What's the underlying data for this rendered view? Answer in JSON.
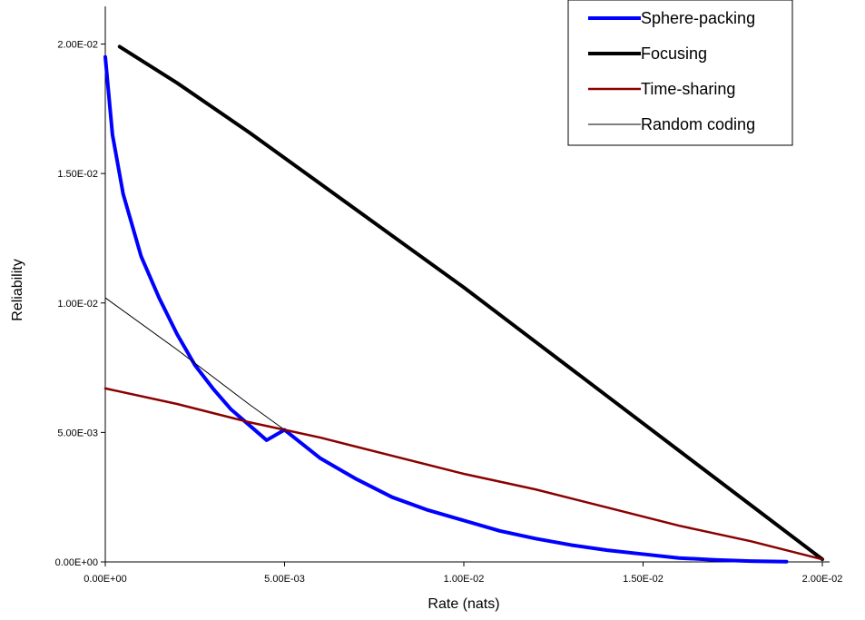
{
  "chart_data": {
    "type": "line",
    "title": "",
    "xlabel": "Rate (nats)",
    "ylabel": "Reliability",
    "xlim": [
      0,
      0.02
    ],
    "ylim": [
      0,
      0.021
    ],
    "x_ticks": [
      0,
      0.005,
      0.01,
      0.015,
      0.02
    ],
    "x_tick_labels": [
      "0.00E+00",
      "5.00E-03",
      "1.00E-02",
      "1.50E-02",
      "2.00E-02"
    ],
    "y_ticks": [
      0,
      0.005,
      0.01,
      0.015,
      0.02
    ],
    "y_tick_labels": [
      "0.00E+00",
      "5.00E-03",
      "1.00E-02",
      "1.50E-02",
      "2.00E-02"
    ],
    "grid": false,
    "legend_position": "top-right",
    "series": [
      {
        "name": "Sphere-packing",
        "color": "#0000ff",
        "width": 4,
        "x": [
          0,
          0.0002,
          0.0005,
          0.001,
          0.0015,
          0.002,
          0.0025,
          0.003,
          0.0035,
          0.004,
          0.0045,
          0.005,
          0.006,
          0.007,
          0.008,
          0.009,
          0.01,
          0.011,
          0.012,
          0.013,
          0.014,
          0.015,
          0.016,
          0.017,
          0.018,
          0.019
        ],
        "y": [
          0.0195,
          0.0165,
          0.0142,
          0.0118,
          0.0102,
          0.0088,
          0.0076,
          0.0067,
          0.0059,
          0.0053,
          0.0047,
          0.0051,
          0.004,
          0.0032,
          0.0025,
          0.002,
          0.0016,
          0.0012,
          0.0009,
          0.00065,
          0.00045,
          0.0003,
          0.00015,
          8e-05,
          3e-05,
          1e-05
        ]
      },
      {
        "name": "Focusing",
        "color": "#000000",
        "width": 4,
        "x": [
          0.0004,
          0.002,
          0.004,
          0.006,
          0.008,
          0.01,
          0.012,
          0.014,
          0.016,
          0.018,
          0.02
        ],
        "y": [
          0.0199,
          0.0185,
          0.0166,
          0.0146,
          0.0126,
          0.0106,
          0.0085,
          0.0064,
          0.0043,
          0.0022,
          0.0001
        ]
      },
      {
        "name": "Time-sharing",
        "color": "#8b0000",
        "width": 2.5,
        "x": [
          0,
          0.002,
          0.004,
          0.005,
          0.006,
          0.008,
          0.01,
          0.012,
          0.014,
          0.016,
          0.018,
          0.02
        ],
        "y": [
          0.0067,
          0.0061,
          0.0054,
          0.0051,
          0.0048,
          0.0041,
          0.0034,
          0.0028,
          0.0021,
          0.0014,
          0.0008,
          0.0001
        ]
      },
      {
        "name": "Random coding",
        "color": "#000000",
        "width": 1,
        "x": [
          0,
          0.002,
          0.004,
          0.005
        ],
        "y": [
          0.0102,
          0.0082,
          0.0061,
          0.0051
        ]
      }
    ]
  }
}
